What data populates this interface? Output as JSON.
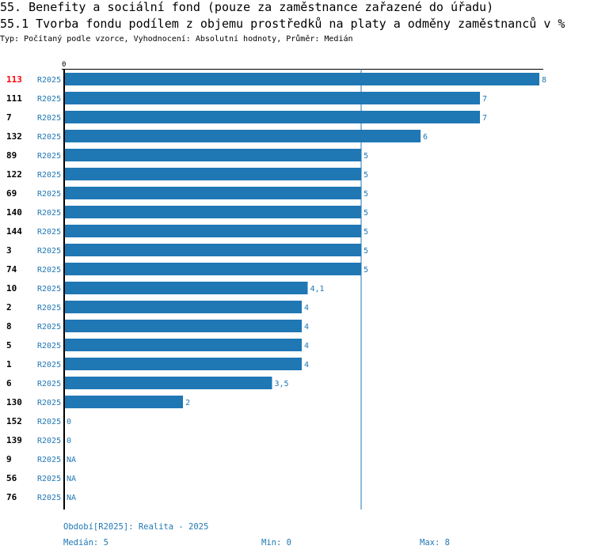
{
  "title": "55. Benefity a sociální fond (pouze za zaměstnance zařazené do úřadu)",
  "subtitle": "55.1 Tvorba fondu podílem z objemu prostředků na platy a odměny zaměstnanců v %",
  "info": "Typ: Počítaný podle vzorce, Vyhodnocení: Absolutní hodnoty, Průměr: Medián",
  "chart_data": {
    "type": "bar",
    "orientation": "horizontal",
    "axis_zero_label": "0",
    "xlim": [
      0,
      8
    ],
    "median": 5,
    "colors": {
      "bar": "#1f77b4",
      "highlight": "#ff0000"
    },
    "highlight": "113",
    "rows": [
      {
        "id": "113",
        "period": "R2025",
        "value": 8,
        "label": "8"
      },
      {
        "id": "111",
        "period": "R2025",
        "value": 7,
        "label": "7"
      },
      {
        "id": "7",
        "period": "R2025",
        "value": 7,
        "label": "7"
      },
      {
        "id": "132",
        "period": "R2025",
        "value": 6,
        "label": "6"
      },
      {
        "id": "89",
        "period": "R2025",
        "value": 5,
        "label": "5"
      },
      {
        "id": "122",
        "period": "R2025",
        "value": 5,
        "label": "5"
      },
      {
        "id": "69",
        "period": "R2025",
        "value": 5,
        "label": "5"
      },
      {
        "id": "140",
        "period": "R2025",
        "value": 5,
        "label": "5"
      },
      {
        "id": "144",
        "period": "R2025",
        "value": 5,
        "label": "5"
      },
      {
        "id": "3",
        "period": "R2025",
        "value": 5,
        "label": "5"
      },
      {
        "id": "74",
        "period": "R2025",
        "value": 5,
        "label": "5"
      },
      {
        "id": "10",
        "period": "R2025",
        "value": 4.1,
        "label": "4,1"
      },
      {
        "id": "2",
        "period": "R2025",
        "value": 4,
        "label": "4"
      },
      {
        "id": "8",
        "period": "R2025",
        "value": 4,
        "label": "4"
      },
      {
        "id": "5",
        "period": "R2025",
        "value": 4,
        "label": "4"
      },
      {
        "id": "1",
        "period": "R2025",
        "value": 4,
        "label": "4"
      },
      {
        "id": "6",
        "period": "R2025",
        "value": 3.5,
        "label": "3,5"
      },
      {
        "id": "130",
        "period": "R2025",
        "value": 2,
        "label": "2"
      },
      {
        "id": "152",
        "period": "R2025",
        "value": 0,
        "label": "0"
      },
      {
        "id": "139",
        "period": "R2025",
        "value": 0,
        "label": "0"
      },
      {
        "id": "9",
        "period": "R2025",
        "value": null,
        "label": "NA"
      },
      {
        "id": "56",
        "period": "R2025",
        "value": null,
        "label": "NA"
      },
      {
        "id": "76",
        "period": "R2025",
        "value": null,
        "label": "NA"
      }
    ]
  },
  "footer": {
    "period": "Období[R2025]: Realita - 2025",
    "median": "Medián: 5",
    "min": "Min: 0",
    "max": "Max: 8"
  }
}
